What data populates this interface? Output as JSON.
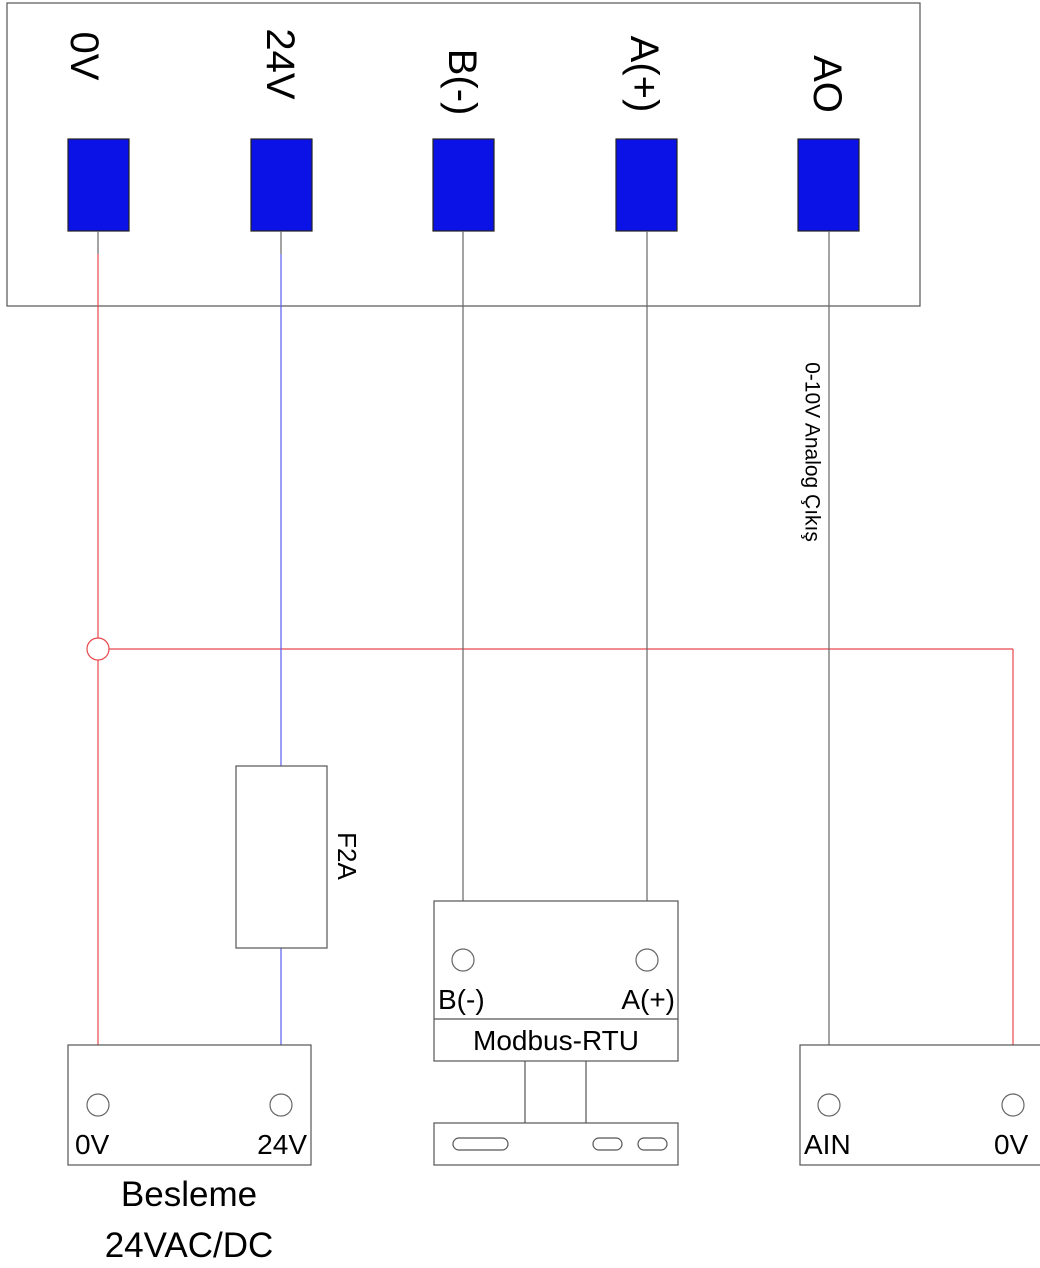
{
  "device": {
    "terminals": [
      {
        "label": "0V",
        "wire": "red"
      },
      {
        "label": "24V",
        "wire": "blue"
      },
      {
        "label": "B(-)",
        "wire": "black"
      },
      {
        "label": "A(+)",
        "wire": "black"
      },
      {
        "label": "AO",
        "wire": "black"
      }
    ],
    "ao_note": "0-10V Analog Çıkış"
  },
  "fuse": {
    "label": "F2A"
  },
  "modbus": {
    "pin_left": "B(-)",
    "pin_right": "A(+)",
    "title": "Modbus-RTU"
  },
  "supply": {
    "pin_left": "0V",
    "pin_right": "24V",
    "title_line1": "Besleme",
    "title_line2": "24VAC/DC"
  },
  "analog_input": {
    "pin_left": "AIN",
    "pin_right": "0V"
  },
  "colors": {
    "terminal_fill": "#0b12e6",
    "wire_red": "#e8474c",
    "wire_blue": "#5b5ff0",
    "wire_black": "#666666"
  }
}
